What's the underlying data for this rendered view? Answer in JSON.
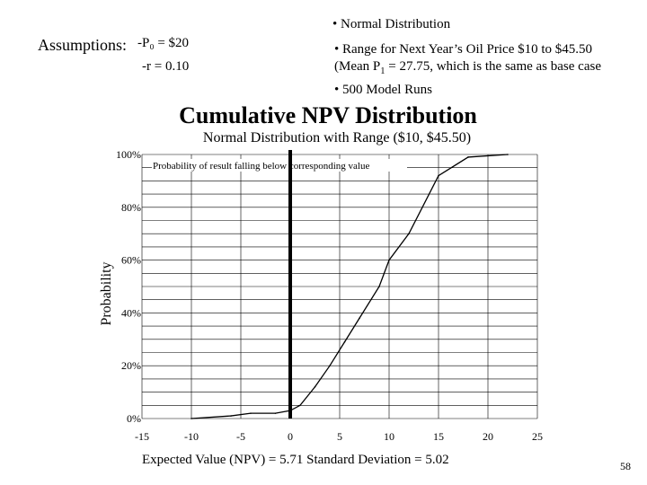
{
  "header": {
    "bullet_distribution": "• Normal Distribution",
    "assumptions_label": "Assumptions:",
    "assumption_p0": "-P₀ = $20",
    "assumption_r": "-r =  0.10",
    "bullet_range": "• Range for Next Year’s Oil Price $10 to $45.50",
    "bullet_mean_prefix": "(Mean P",
    "bullet_mean_sub": "1",
    "bullet_mean_suffix": " = 27.75, which is the same as base case",
    "bullet_runs": "• 500 Model Runs"
  },
  "footer": {
    "stats": "Expected Value (NPV) = 5.71   Standard Deviation = 5.02",
    "page_number": "58"
  },
  "chart_data": {
    "type": "line",
    "title": "Cumulative NPV Distribution",
    "subtitle": "Normal Distribution with Range ($10, $45.50)",
    "ylabel": "Probability",
    "xlabel": "",
    "xlim": [
      -15,
      25
    ],
    "ylim": [
      0,
      100
    ],
    "x_ticks": [
      "-15",
      "-10",
      "-5",
      "0",
      "5",
      "10",
      "15",
      "20",
      "25"
    ],
    "y_ticks": [
      "0%",
      "20%",
      "40%",
      "60%",
      "80%",
      "100%"
    ],
    "grid": true,
    "annotation": "Probability of result falling below corresponding value",
    "vertical_marker_x": 0,
    "series": [
      {
        "x": [
          -10,
          -6,
          -4,
          -1.5,
          0,
          1,
          2.5,
          4,
          5.5,
          7,
          9,
          10,
          12,
          15,
          18,
          22
        ],
        "y": [
          0,
          1,
          2,
          2,
          3,
          5,
          12,
          20,
          29,
          38,
          50,
          60,
          70,
          92,
          99,
          100
        ]
      }
    ],
    "series_color": "#000000"
  }
}
